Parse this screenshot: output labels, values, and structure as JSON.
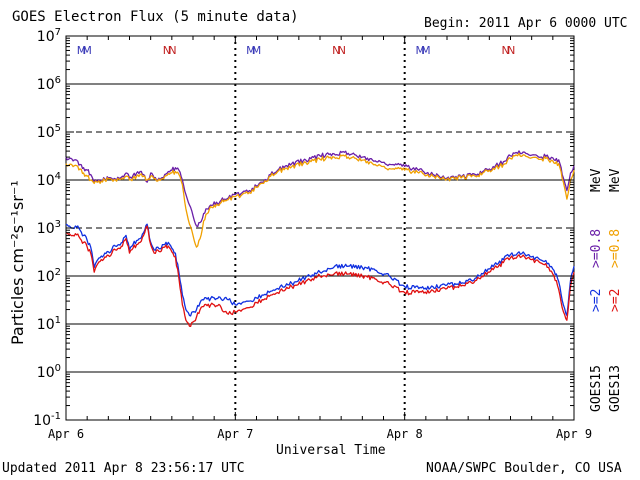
{
  "header": {
    "title": "GOES Electron Flux (5 minute data)",
    "begin": "Begin: 2011 Apr 6 0000 UTC"
  },
  "footer": {
    "updated": "Updated 2011 Apr  8 23:56:17 UTC",
    "credit": "NOAA/SWPC Boulder, CO USA"
  },
  "colors": {
    "goes15_08": "#6a1fa8",
    "goes13_08": "#f0a000",
    "goes15_2": "#1030e0",
    "goes13_2": "#e01010",
    "mn_m": "#3a3ab8",
    "mn_n": "#c02020"
  },
  "legend": {
    "goes15": "GOES15",
    "goes13": "GOES13",
    "g15_2": ">=2",
    "g13_2": ">=2",
    "g15_08": ">=0.8",
    "g13_08": ">=0.8",
    "unit": "MeV"
  },
  "chart_data": {
    "type": "line",
    "title": "GOES Electron Flux (5 minute data)",
    "xlabel": "Universal Time",
    "ylabel": "Particles cm⁻²s⁻¹sr⁻¹",
    "yscale": "log",
    "ylim": [
      0.1,
      10000000
    ],
    "xlim": [
      0,
      72
    ],
    "x_unit": "hours since 2011 Apr 6 0000 UTC",
    "y_ticks": [
      {
        "base": "10",
        "exp": "-1",
        "value": 0.1
      },
      {
        "base": "10",
        "exp": "0",
        "value": 1
      },
      {
        "base": "10",
        "exp": "1",
        "value": 10
      },
      {
        "base": "10",
        "exp": "2",
        "value": 100
      },
      {
        "base": "10",
        "exp": "3",
        "value": 1000
      },
      {
        "base": "10",
        "exp": "4",
        "value": 10000
      },
      {
        "base": "10",
        "exp": "5",
        "value": 100000
      },
      {
        "base": "10",
        "exp": "6",
        "value": 1000000
      },
      {
        "base": "10",
        "exp": "7",
        "value": 10000000
      }
    ],
    "x_ticks": [
      {
        "label": "Apr 6",
        "hour": 0
      },
      {
        "label": "Apr 7",
        "hour": 24
      },
      {
        "label": "Apr 8",
        "hour": 48
      },
      {
        "label": "Apr 9",
        "hour": 72
      }
    ],
    "solid_gridlines": [
      1,
      10,
      100,
      10000,
      1000000
    ],
    "dashed_gridlines": [
      1000,
      100000
    ],
    "mn_markers": [
      {
        "label": "M",
        "hour": 2.2
      },
      {
        "label": "M",
        "hour": 3.0
      },
      {
        "label": "N",
        "hour": 14.3
      },
      {
        "label": "N",
        "hour": 15.1
      },
      {
        "label": "M",
        "hour": 26.2
      },
      {
        "label": "M",
        "hour": 27.0
      },
      {
        "label": "N",
        "hour": 38.3
      },
      {
        "label": "N",
        "hour": 39.1
      },
      {
        "label": "M",
        "hour": 50.2
      },
      {
        "label": "M",
        "hour": 51.0
      },
      {
        "label": "N",
        "hour": 62.3
      },
      {
        "label": "N",
        "hour": 63.1
      }
    ],
    "series": [
      {
        "name": "GOES15 >=0.8 MeV",
        "color": "#6a1fa8",
        "x": [
          0,
          0.5,
          1,
          1.5,
          2,
          2.5,
          3,
          3.5,
          4,
          4.5,
          5,
          5.5,
          6,
          6.5,
          7,
          7.5,
          8,
          8.5,
          9,
          9.5,
          10,
          10.5,
          11,
          11.5,
          12,
          12.5,
          13,
          13.5,
          14,
          14.5,
          15,
          15.5,
          16,
          16.5,
          17,
          17.5,
          18,
          18.5,
          19,
          19.5,
          20,
          20.5,
          21,
          21.5,
          22,
          22.5,
          23,
          24,
          25,
          26,
          27,
          28,
          29,
          30,
          32,
          34,
          36,
          38,
          40,
          42,
          44,
          46,
          48,
          50,
          52,
          54,
          56,
          58,
          60,
          62,
          63,
          64,
          65,
          66,
          67,
          68,
          69,
          69.5,
          70,
          70.5,
          71,
          71.5,
          72
        ],
        "y": [
          30000,
          28000,
          25000,
          26000,
          21000,
          18000,
          16000,
          13000,
          9000,
          9500,
          10000,
          10500,
          11000,
          10800,
          10500,
          11000,
          12000,
          14000,
          11000,
          12500,
          14000,
          15000,
          13000,
          9000,
          14000,
          11000,
          10000,
          11000,
          13000,
          15000,
          16000,
          18000,
          16000,
          10000,
          5000,
          3000,
          1800,
          1100,
          1300,
          2000,
          2500,
          3000,
          3500,
          3200,
          3800,
          4000,
          4200,
          5000,
          5500,
          6000,
          7500,
          9000,
          13000,
          16000,
          22000,
          26000,
          32000,
          35000,
          36000,
          30000,
          24000,
          21000,
          19000,
          16000,
          13000,
          11000,
          11500,
          13000,
          17000,
          24000,
          32000,
          36000,
          38000,
          33000,
          30000,
          31000,
          29000,
          28000,
          22000,
          11000,
          6000,
          14000,
          20000
        ]
      },
      {
        "name": "GOES13 >=0.8 MeV",
        "color": "#f0a000",
        "x": [
          0,
          0.5,
          1,
          1.5,
          2,
          2.5,
          3,
          3.5,
          4,
          4.5,
          5,
          5.5,
          6,
          6.5,
          7,
          7.5,
          8,
          8.5,
          9,
          9.5,
          10,
          10.5,
          11,
          11.5,
          12,
          12.5,
          13,
          13.5,
          14,
          14.5,
          15,
          15.5,
          16,
          16.5,
          17,
          17.5,
          18,
          18.5,
          19,
          19.5,
          20,
          20.5,
          21,
          21.5,
          22,
          22.5,
          23,
          24,
          25,
          26,
          27,
          28,
          29,
          30,
          32,
          34,
          36,
          38,
          40,
          42,
          44,
          46,
          48,
          50,
          52,
          54,
          56,
          58,
          60,
          62,
          63,
          64,
          65,
          66,
          67,
          68,
          69,
          69.5,
          70,
          70.5,
          71,
          71.5,
          72
        ],
        "y": [
          22000,
          21000,
          19000,
          20000,
          17000,
          14000,
          12000,
          10000,
          8500,
          9000,
          9500,
          10000,
          10500,
          10200,
          10000,
          10400,
          11000,
          12000,
          10000,
          11000,
          12000,
          13000,
          12000,
          10000,
          12000,
          10500,
          9500,
          10500,
          12000,
          13500,
          14000,
          15000,
          13000,
          8000,
          2500,
          1200,
          700,
          400,
          600,
          1400,
          2000,
          2800,
          3000,
          3000,
          3400,
          3800,
          3900,
          4500,
          5000,
          5500,
          7000,
          8500,
          12000,
          15000,
          19000,
          23000,
          27000,
          30000,
          30000,
          26000,
          20000,
          17000,
          16000,
          14000,
          12000,
          10500,
          11000,
          12000,
          16000,
          21000,
          28000,
          32000,
          33000,
          29000,
          27000,
          28000,
          25000,
          24000,
          18000,
          9000,
          4000,
          10000,
          16000
        ]
      },
      {
        "name": "GOES15 >=2 MeV",
        "color": "#1030e0",
        "x": [
          0,
          0.5,
          1,
          1.5,
          2,
          2.5,
          3,
          3.5,
          4,
          4.5,
          5,
          5.5,
          6,
          6.5,
          7,
          7.5,
          8,
          8.5,
          9,
          9.5,
          10,
          10.5,
          11,
          11.5,
          12,
          12.5,
          13,
          13.5,
          14,
          14.5,
          15,
          15.5,
          16,
          16.5,
          17,
          17.5,
          18,
          18.5,
          19,
          19.5,
          20,
          20.5,
          21,
          21.5,
          22,
          22.5,
          23,
          24,
          25,
          26,
          27,
          28,
          29,
          30,
          32,
          34,
          36,
          38,
          40,
          42,
          44,
          46,
          48,
          50,
          52,
          54,
          56,
          58,
          60,
          62,
          63,
          64,
          65,
          66,
          67,
          68,
          69,
          69.5,
          70,
          70.5,
          71,
          71.5,
          72
        ],
        "y": [
          1200,
          1100,
          1000,
          1050,
          900,
          700,
          550,
          400,
          150,
          220,
          260,
          300,
          320,
          360,
          420,
          450,
          500,
          700,
          350,
          450,
          550,
          600,
          800,
          1200,
          500,
          350,
          400,
          380,
          450,
          500,
          380,
          300,
          120,
          40,
          20,
          15,
          18,
          20,
          28,
          32,
          33,
          34,
          35,
          34,
          33,
          35,
          32,
          25,
          28,
          30,
          35,
          40,
          48,
          55,
          70,
          95,
          120,
          155,
          160,
          150,
          130,
          95,
          60,
          55,
          60,
          65,
          70,
          90,
          140,
          220,
          280,
          300,
          290,
          250,
          230,
          210,
          140,
          110,
          60,
          25,
          15,
          80,
          160
        ]
      },
      {
        "name": "GOES13 >=2 MeV",
        "color": "#e01010",
        "x": [
          0,
          0.5,
          1,
          1.5,
          2,
          2.5,
          3,
          3.5,
          4,
          4.5,
          5,
          5.5,
          6,
          6.5,
          7,
          7.5,
          8,
          8.5,
          9,
          9.5,
          10,
          10.5,
          11,
          11.5,
          12,
          12.5,
          13,
          13.5,
          14,
          14.5,
          15,
          15.5,
          16,
          16.5,
          17,
          17.5,
          18,
          18.5,
          19,
          19.5,
          20,
          20.5,
          21,
          21.5,
          22,
          22.5,
          23,
          24,
          25,
          26,
          27,
          28,
          29,
          30,
          32,
          34,
          36,
          38,
          40,
          42,
          44,
          46,
          48,
          50,
          52,
          54,
          56,
          58,
          60,
          62,
          63,
          64,
          65,
          66,
          67,
          68,
          69,
          69.5,
          70,
          70.5,
          71,
          71.5,
          72
        ],
        "y": [
          800,
          750,
          700,
          720,
          600,
          500,
          400,
          300,
          120,
          180,
          220,
          250,
          270,
          300,
          350,
          380,
          420,
          600,
          300,
          380,
          450,
          500,
          700,
          1100,
          450,
          300,
          350,
          330,
          400,
          420,
          320,
          250,
          90,
          25,
          12,
          9,
          11,
          14,
          20,
          23,
          24,
          25,
          25,
          24,
          22,
          18,
          16,
          18,
          20,
          22,
          28,
          32,
          40,
          45,
          60,
          78,
          100,
          110,
          110,
          100,
          85,
          65,
          45,
          45,
          50,
          55,
          62,
          80,
          120,
          190,
          240,
          260,
          250,
          220,
          200,
          180,
          110,
          80,
          40,
          18,
          12,
          60,
          120
        ]
      }
    ]
  }
}
